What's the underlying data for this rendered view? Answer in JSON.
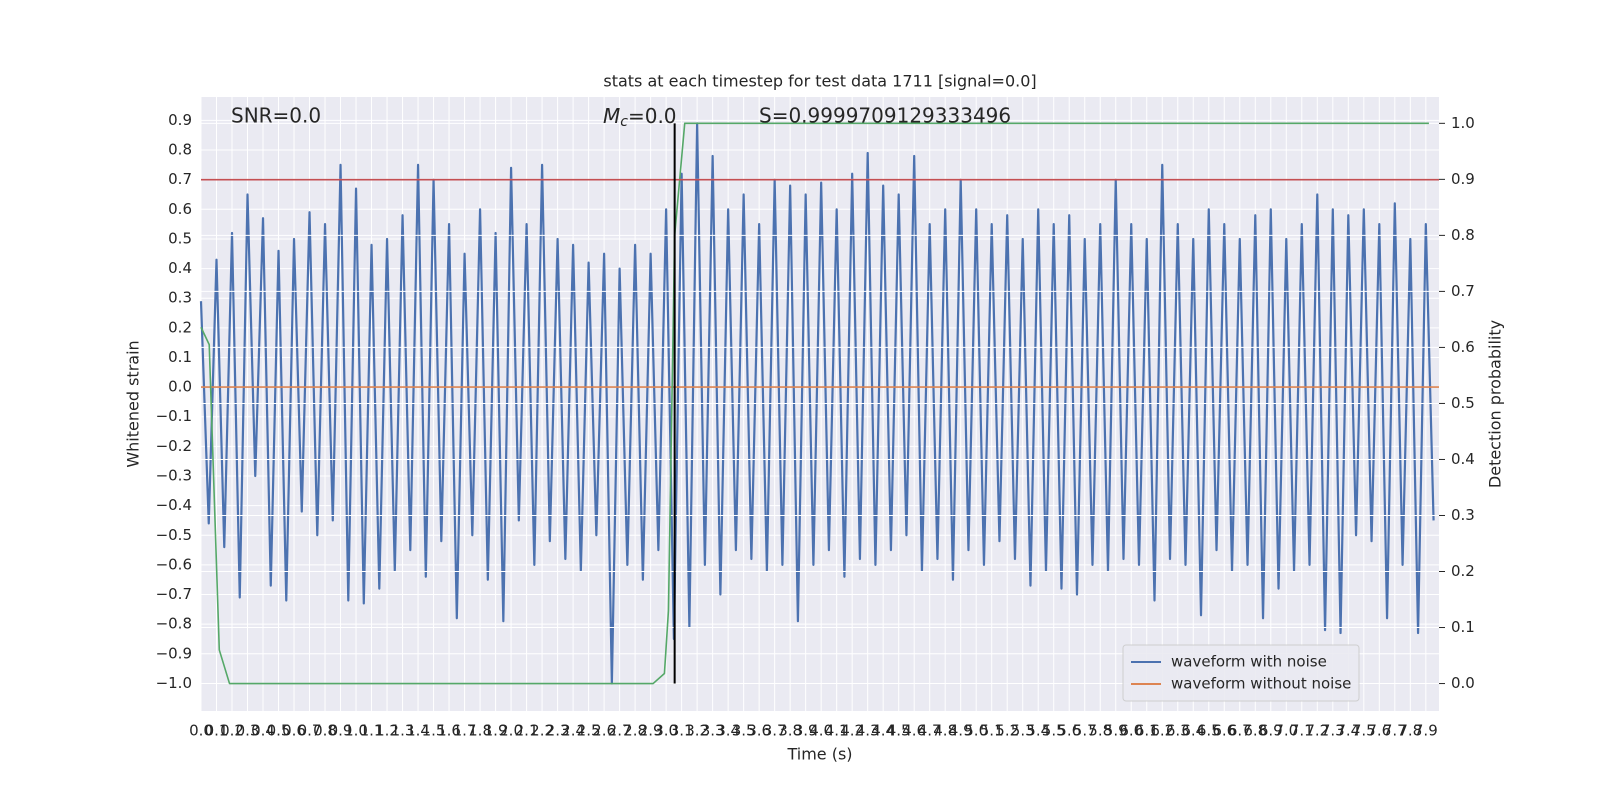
{
  "chart_data": {
    "type": "line",
    "title": "stats at each timestep for test data 1711 [signal=0.0]",
    "xlabel": "Time (s)",
    "ylabel": "Whitened strain",
    "y2label": "Detection probability",
    "annotations": [
      {
        "text": "SNR=0.0"
      },
      {
        "symbol": "M",
        "subscript": "c",
        "text": "=0.0"
      },
      {
        "text": "S=0.9999709129333496"
      }
    ],
    "xlim": [
      0,
      7.985
    ],
    "ylim": [
      -1.093,
      0.979
    ],
    "y2lim": [
      -0.049,
      1.047
    ],
    "xticks": [
      {
        "value": 0,
        "label": "0.0"
      },
      0.1,
      0.2,
      0.3,
      0.4,
      0.5,
      0.6,
      0.7,
      0.8,
      0.9,
      {
        "value": 1,
        "label": "1.0"
      },
      1.1,
      1.2,
      1.3,
      1.4,
      1.5,
      1.6,
      1.7,
      1.8,
      1.9,
      {
        "value": 2,
        "label": "2.0"
      },
      2.1,
      2.2,
      2.3,
      2.4,
      2.5,
      2.6,
      2.7,
      2.8,
      2.9,
      {
        "value": 3,
        "label": "3.0"
      },
      3.1,
      3.2,
      3.3,
      3.4,
      3.5,
      3.6,
      3.7,
      3.8,
      3.9,
      {
        "value": 4,
        "label": "4.0"
      },
      4.1,
      4.2,
      4.3,
      4.4,
      4.5,
      4.6,
      4.7,
      4.8,
      4.9,
      {
        "value": 5,
        "label": "5.0"
      },
      5.1,
      5.2,
      5.3,
      5.4,
      5.5,
      5.6,
      5.7,
      5.8,
      5.9,
      {
        "value": 6,
        "label": "6.0"
      },
      6.1,
      6.2,
      6.3,
      6.4,
      6.5,
      6.6,
      6.7,
      6.8,
      6.9,
      {
        "value": 7,
        "label": "7.0"
      },
      7.1,
      7.2,
      7.3,
      7.4,
      7.5,
      7.6,
      7.7,
      7.8,
      7.9
    ],
    "yticks": [
      {
        "value": -1,
        "label": "−1.0"
      },
      {
        "value": -0.9,
        "label": "−0.9"
      },
      {
        "value": -0.8,
        "label": "−0.8"
      },
      {
        "value": -0.7,
        "label": "−0.7"
      },
      {
        "value": -0.6,
        "label": "−0.6"
      },
      {
        "value": -0.5,
        "label": "−0.5"
      },
      {
        "value": -0.4,
        "label": "−0.4"
      },
      {
        "value": -0.3,
        "label": "−0.3"
      },
      {
        "value": -0.2,
        "label": "−0.2"
      },
      {
        "value": -0.1,
        "label": "−0.1"
      },
      {
        "value": 0,
        "label": "0.0"
      },
      0.1,
      0.2,
      0.3,
      0.4,
      0.5,
      0.6,
      0.7,
      0.8,
      0.9
    ],
    "y2ticks": [
      {
        "value": 0,
        "label": "0.0"
      },
      0.1,
      0.2,
      0.3,
      0.4,
      0.5,
      0.6,
      0.7,
      0.8,
      0.9,
      {
        "value": 1,
        "label": "1.0"
      }
    ],
    "grid": true,
    "legend": "lower right",
    "series": [
      {
        "name": "waveform with noise",
        "color": "#4c72b0",
        "x": [
          0,
          0.05,
          0.1,
          0.15,
          0.2,
          0.25,
          0.3,
          0.35,
          0.4,
          0.45,
          0.5,
          0.55,
          0.6,
          0.65,
          0.7,
          0.75,
          0.8,
          0.85,
          0.9,
          0.95,
          1,
          1.05,
          1.1,
          1.15,
          1.2,
          1.25,
          1.3,
          1.35,
          1.4,
          1.45,
          1.5,
          1.55,
          1.6,
          1.65,
          1.7,
          1.75,
          1.8,
          1.85,
          1.9,
          1.95,
          2,
          2.05,
          2.1,
          2.15,
          2.2,
          2.25,
          2.3,
          2.35,
          2.4,
          2.45,
          2.5,
          2.55,
          2.6,
          2.65,
          2.7,
          2.75,
          2.8,
          2.85,
          2.9,
          2.95,
          3,
          3.05,
          3.1,
          3.15,
          3.2,
          3.25,
          3.3,
          3.35,
          3.4,
          3.45,
          3.5,
          3.55,
          3.6,
          3.65,
          3.7,
          3.75,
          3.8,
          3.85,
          3.9,
          3.95,
          4,
          4.05,
          4.1,
          4.15,
          4.2,
          4.25,
          4.3,
          4.35,
          4.4,
          4.45,
          4.5,
          4.55,
          4.6,
          4.65,
          4.7,
          4.75,
          4.8,
          4.85,
          4.9,
          4.95,
          5,
          5.05,
          5.1,
          5.15,
          5.2,
          5.25,
          5.3,
          5.35,
          5.4,
          5.45,
          5.5,
          5.55,
          5.6,
          5.65,
          5.7,
          5.75,
          5.8,
          5.85,
          5.9,
          5.95,
          6,
          6.05,
          6.1,
          6.15,
          6.2,
          6.25,
          6.3,
          6.35,
          6.4,
          6.45,
          6.5,
          6.55,
          6.6,
          6.65,
          6.7,
          6.75,
          6.8,
          6.85,
          6.9,
          6.95,
          7,
          7.05,
          7.1,
          7.15,
          7.2,
          7.25,
          7.3,
          7.35,
          7.4,
          7.45,
          7.5,
          7.55,
          7.6,
          7.65,
          7.7,
          7.75,
          7.8,
          7.85,
          7.9,
          7.95
        ],
        "values": [
          0.29,
          -0.46,
          0.43,
          -0.54,
          0.52,
          -0.71,
          0.65,
          -0.3,
          0.57,
          -0.67,
          0.46,
          -0.72,
          0.5,
          -0.42,
          0.59,
          -0.5,
          0.55,
          -0.45,
          0.75,
          -0.72,
          0.67,
          -0.73,
          0.48,
          -0.68,
          0.5,
          -0.62,
          0.58,
          -0.55,
          0.75,
          -0.64,
          0.7,
          -0.52,
          0.55,
          -0.78,
          0.45,
          -0.5,
          0.6,
          -0.65,
          0.52,
          -0.79,
          0.74,
          -0.45,
          0.55,
          -0.6,
          0.75,
          -0.52,
          0.5,
          -0.58,
          0.48,
          -0.62,
          0.42,
          -0.5,
          0.45,
          -1.0,
          0.4,
          -0.6,
          0.48,
          -0.65,
          0.45,
          -0.55,
          0.6,
          -0.85,
          0.72,
          -0.81,
          0.89,
          -0.6,
          0.78,
          -0.7,
          0.6,
          -0.55,
          0.65,
          -0.58,
          0.55,
          -0.62,
          0.7,
          -0.6,
          0.68,
          -0.79,
          0.65,
          -0.6,
          0.69,
          -0.55,
          0.6,
          -0.64,
          0.72,
          -0.58,
          0.79,
          -0.6,
          0.68,
          -0.55,
          0.65,
          -0.5,
          0.78,
          -0.62,
          0.55,
          -0.58,
          0.6,
          -0.65,
          0.7,
          -0.55,
          0.6,
          -0.6,
          0.55,
          -0.52,
          0.58,
          -0.58,
          0.5,
          -0.67,
          0.6,
          -0.62,
          0.55,
          -0.68,
          0.58,
          -0.7,
          0.5,
          -0.6,
          0.55,
          -0.62,
          0.7,
          -0.58,
          0.55,
          -0.6,
          0.5,
          -0.72,
          0.75,
          -0.58,
          0.55,
          -0.6,
          0.5,
          -0.77,
          0.6,
          -0.55,
          0.55,
          -0.62,
          0.5,
          -0.6,
          0.58,
          -0.78,
          0.6,
          -0.68,
          0.5,
          -0.62,
          0.55,
          -0.6,
          0.65,
          -0.82,
          0.6,
          -0.83,
          0.58,
          -0.5,
          0.6,
          -0.52,
          0.55,
          -0.78,
          0.62,
          -0.6,
          0.5,
          -0.83,
          0.55,
          -0.45
        ]
      },
      {
        "name": "waveform without noise",
        "color": "#dd8452",
        "x": [
          0,
          7.985
        ],
        "values": [
          0,
          0
        ]
      },
      {
        "color": "#55a868",
        "axis": "y2",
        "x": [
          0,
          0.053,
          0.118,
          0.184,
          2.916,
          2.989,
          3.015,
          3.055,
          3.12,
          7.92
        ],
        "values": [
          0.636,
          0.605,
          0.06,
          0,
          0,
          0.018,
          0.13,
          0.8,
          1.0,
          1.0
        ]
      }
    ],
    "hline": {
      "value": 0.7,
      "color": "#c44e52"
    },
    "vline": {
      "value": 3.055,
      "color": "#000000"
    }
  }
}
